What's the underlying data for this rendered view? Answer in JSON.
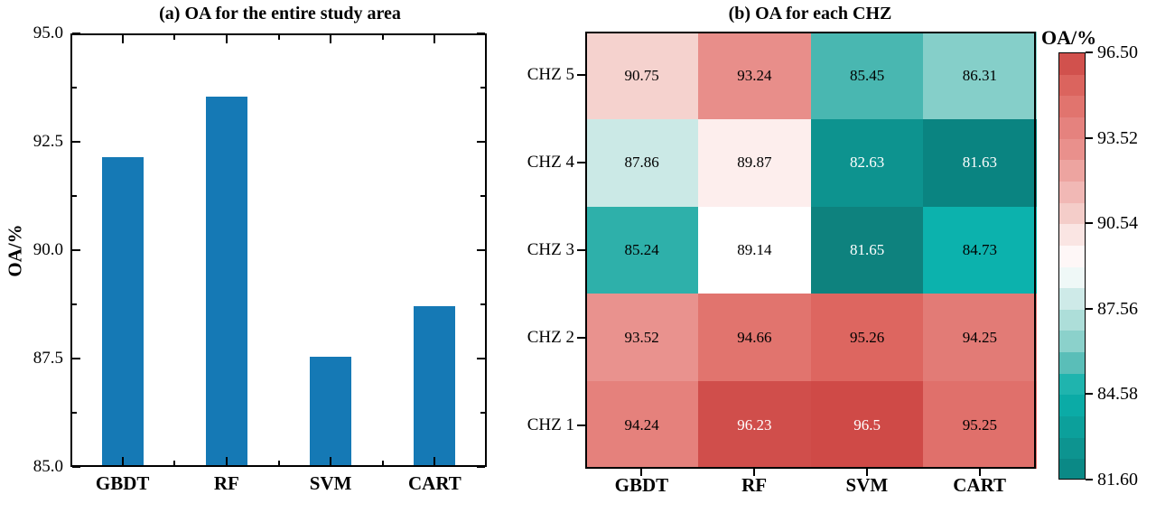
{
  "colors": {
    "background": "#ffffff",
    "axis": "#000000",
    "bar": "#1579b5"
  },
  "chart_data": [
    {
      "type": "bar",
      "title": "(a) OA for the entire study area",
      "categories": [
        "GBDT",
        "RF",
        "SVM",
        "CART"
      ],
      "values": [
        92.15,
        93.55,
        87.55,
        88.7
      ],
      "xlabel": "",
      "ylabel": "OA/%",
      "ylim": [
        85.0,
        95.0
      ],
      "yticks": [
        85.0,
        87.5,
        90.0,
        92.5,
        95.0
      ],
      "ytick_labels": [
        "85.0",
        "87.5",
        "90.0",
        "92.5",
        "95.0"
      ],
      "yminor_ticks": [
        86.25,
        88.75,
        91.25,
        93.75
      ],
      "bar_color": "#1579b5",
      "grid": "off",
      "legend": "none"
    },
    {
      "type": "heatmap",
      "title": "(b) OA for each CHZ",
      "rows": [
        "CHZ 5",
        "CHZ 4",
        "CHZ 3",
        "CHZ 2",
        "CHZ 1"
      ],
      "columns": [
        "GBDT",
        "RF",
        "SVM",
        "CART"
      ],
      "values": [
        [
          90.75,
          93.24,
          85.45,
          86.31
        ],
        [
          87.86,
          89.87,
          82.63,
          81.63
        ],
        [
          85.24,
          89.14,
          81.65,
          84.73
        ],
        [
          93.52,
          94.66,
          95.26,
          94.25
        ],
        [
          94.24,
          96.23,
          96.5,
          95.25
        ]
      ],
      "value_labels": [
        [
          "90.75",
          "93.24",
          "85.45",
          "86.31"
        ],
        [
          "87.86",
          "89.87",
          "82.63",
          "81.63"
        ],
        [
          "85.24",
          "89.14",
          "81.65",
          "84.73"
        ],
        [
          "93.52",
          "94.66",
          "95.26",
          "94.25"
        ],
        [
          "94.24",
          "96.23",
          "96.5",
          "95.25"
        ]
      ],
      "cell_colors": [
        [
          "#f5d2ce",
          "#e88e8a",
          "#49b7b1",
          "#85cfc9"
        ],
        [
          "#cbe9e6",
          "#fdeeed",
          "#0d938f",
          "#0a8481"
        ],
        [
          "#2eb0aa",
          "#ffffff",
          "#0e827e",
          "#0cb2ad"
        ],
        [
          "#e9928e",
          "#e1746e",
          "#dd6660",
          "#e27b76"
        ],
        [
          "#e5817c",
          "#d04e4b",
          "#cf4a47",
          "#e0706b"
        ]
      ],
      "cell_text_colors": [
        [
          "#000000",
          "#000000",
          "#000000",
          "#000000"
        ],
        [
          "#000000",
          "#000000",
          "#ffffff",
          "#ffffff"
        ],
        [
          "#000000",
          "#000000",
          "#ffffff",
          "#000000"
        ],
        [
          "#000000",
          "#000000",
          "#000000",
          "#000000"
        ],
        [
          "#000000",
          "#ffffff",
          "#ffffff",
          "#000000"
        ]
      ],
      "colorbar": {
        "label": "OA/%",
        "vmin": 81.6,
        "vmax": 96.5,
        "tick_values": [
          96.5,
          93.52,
          90.54,
          87.56,
          84.58,
          81.6
        ],
        "tick_labels": [
          "96.50",
          "93.52",
          "90.54",
          "87.56",
          "84.58",
          "81.60"
        ],
        "n_bands": 20,
        "stops": [
          [
            81.6,
            "#0a8481"
          ],
          [
            82.63,
            "#0d938f"
          ],
          [
            84.0,
            "#0ba8a3"
          ],
          [
            84.73,
            "#0cb2ad"
          ],
          [
            85.45,
            "#49b7b1"
          ],
          [
            86.31,
            "#85cfc9"
          ],
          [
            87.86,
            "#cbe9e6"
          ],
          [
            89.05,
            "#ffffff"
          ],
          [
            89.87,
            "#fdeeed"
          ],
          [
            90.75,
            "#f5d2ce"
          ],
          [
            92.0,
            "#efaeab"
          ],
          [
            93.24,
            "#e88e8a"
          ],
          [
            94.25,
            "#e37c77"
          ],
          [
            94.66,
            "#e1746e"
          ],
          [
            95.26,
            "#dd6761"
          ],
          [
            96.23,
            "#d04e4b"
          ],
          [
            96.5,
            "#cd4744"
          ]
        ]
      }
    }
  ]
}
